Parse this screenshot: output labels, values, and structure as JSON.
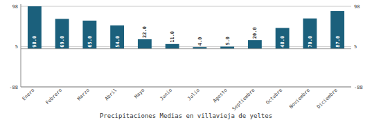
{
  "chart_data": {
    "type": "bar",
    "title": "Precipitaciones Medias en villavieja de yeltes",
    "categories": [
      "Enero",
      "Febrero",
      "Marzo",
      "Abril",
      "Mayo",
      "Junio",
      "Julio",
      "Agosto",
      "Septiembre",
      "Octubre",
      "Noviembre",
      "Diciembre"
    ],
    "values": [
      98.0,
      69.0,
      65.0,
      54.0,
      22.0,
      11.0,
      4.0,
      5.0,
      20.0,
      48.0,
      70.0,
      87.0
    ],
    "value_labels": [
      "98.0",
      "69.0",
      "65.0",
      "54.0",
      "22.0",
      "11.0",
      "4.0",
      "5.0",
      "20.0",
      "48.0",
      "70.0",
      "87.0"
    ],
    "data_labels": true,
    "color": "#1b607c",
    "ylim": [
      -88,
      103
    ],
    "yticks": [
      -88,
      5,
      98
    ],
    "grid": true
  }
}
